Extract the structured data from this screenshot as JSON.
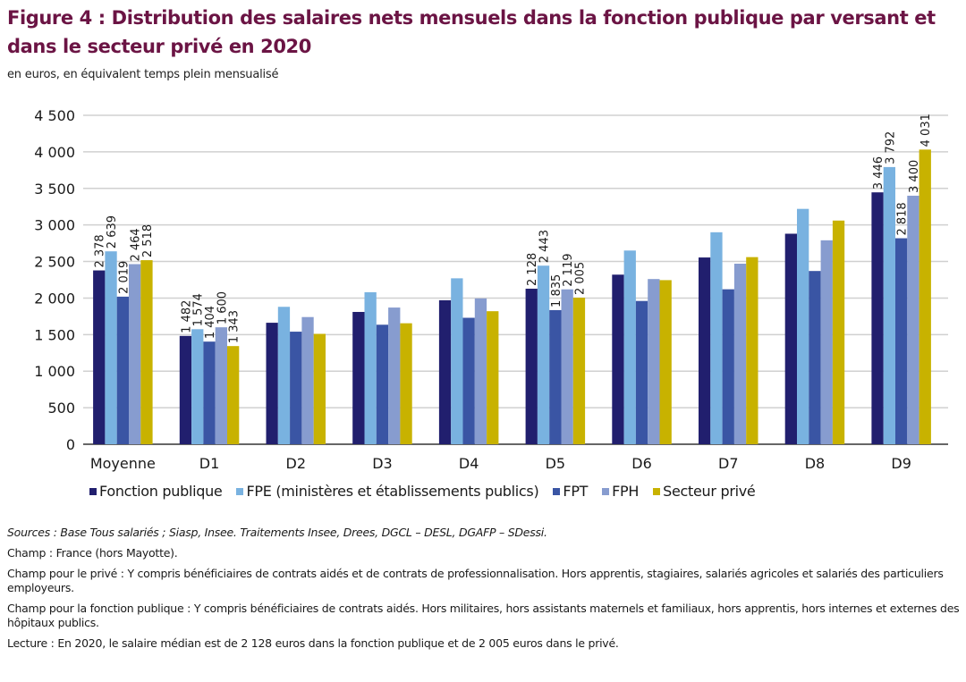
{
  "title": "Figure 4 : Distribution des salaires nets mensuels dans la fonction publique par versant et dans le secteur privé en 2020",
  "subtitle": "en euros, en équivalent temps plein mensualisé",
  "chart_data": {
    "type": "bar",
    "title": "Distribution des salaires nets mensuels dans la fonction publique par versant et dans le secteur privé en 2020",
    "xlabel": "",
    "ylabel": "en euros, en équivalent temps plein mensualisé",
    "ylim": [
      0,
      4500
    ],
    "yticks": [
      0,
      500,
      1000,
      1500,
      2000,
      2500,
      3000,
      3500,
      4000,
      4500
    ],
    "ytick_labels": [
      "0",
      "500",
      "1 000",
      "1 500",
      "2 000",
      "2 500",
      "3 000",
      "3 500",
      "4 000",
      "4 500"
    ],
    "grid": true,
    "legend_position": "bottom",
    "categories": [
      "Moyenne",
      "D1",
      "D2",
      "D3",
      "D4",
      "D5",
      "D6",
      "D7",
      "D8",
      "D9"
    ],
    "series": [
      {
        "name": "Fonction publique",
        "color": "#211f6e",
        "values": [
          2378,
          1482,
          1662,
          1810,
          1970,
          2128,
          2320,
          2555,
          2880,
          3446
        ]
      },
      {
        "name": "FPE (ministères et établissements publics)",
        "color": "#79b2e0",
        "values": [
          2639,
          1574,
          1880,
          2080,
          2270,
          2443,
          2650,
          2900,
          3220,
          3792
        ]
      },
      {
        "name": "FPT",
        "color": "#3a55a4",
        "values": [
          2019,
          1404,
          1540,
          1635,
          1730,
          1835,
          1960,
          2120,
          2370,
          2818
        ]
      },
      {
        "name": "FPH",
        "color": "#879ccf",
        "values": [
          2464,
          1600,
          1740,
          1870,
          1995,
          2119,
          2260,
          2470,
          2790,
          3400
        ]
      },
      {
        "name": "Secteur privé",
        "color": "#c8b200",
        "values": [
          2518,
          1343,
          1510,
          1655,
          1820,
          2005,
          2245,
          2560,
          3060,
          4031
        ]
      }
    ],
    "data_labels": {
      "Moyenne": [
        "2 378",
        "2 639",
        "2 019",
        "2 464",
        "2 518"
      ],
      "D1": [
        "1 482",
        "1 574",
        "1 404",
        "1 600",
        "1 343"
      ],
      "D5": [
        "2 128",
        "2 443",
        "1 835",
        "2 119",
        "2 005"
      ],
      "D9": [
        "3 446",
        "3 792",
        "2 818",
        "3 400",
        "4 031"
      ]
    }
  },
  "notes": {
    "sources": "Sources : Base Tous salariés ; Siasp, Insee. Traitements Insee, Drees, DGCL – DESL, DGAFP – SDessi.",
    "champ": "Champ : France (hors Mayotte).",
    "champ_prive": "Champ pour le privé : Y compris bénéficiaires de contrats aidés et de contrats de professionnalisation. Hors apprentis, stagiaires, salariés agricoles et salariés des particuliers employeurs.",
    "champ_fp": "Champ pour la fonction publique : Y compris bénéficiaires de contrats aidés. Hors militaires, hors assistants maternels et familiaux, hors apprentis, hors internes et externes des hôpitaux publics.",
    "lecture": "Lecture : En 2020, le salaire médian est de 2 128 euros dans la fonction publique et de 2 005 euros dans le privé."
  }
}
